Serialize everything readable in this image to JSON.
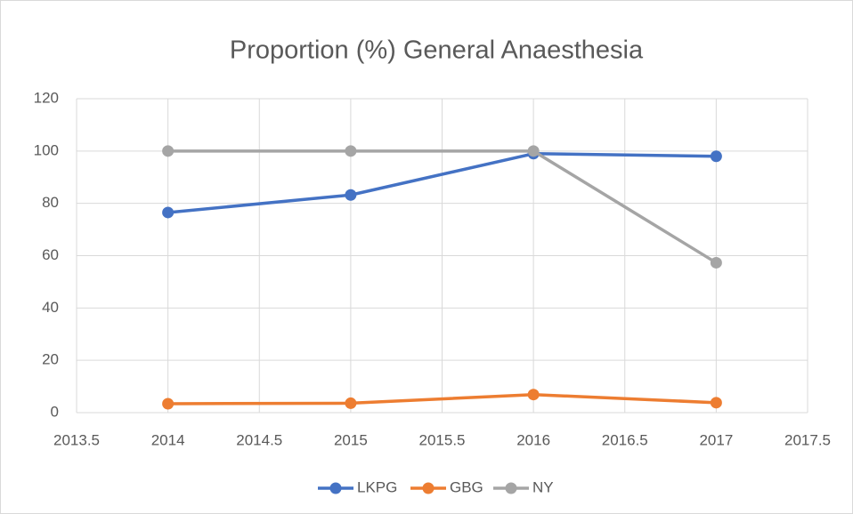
{
  "chart_data": {
    "type": "line",
    "title": "Proportion (%) General Anaesthesia",
    "x": [
      2014,
      2015,
      2016,
      2017
    ],
    "series": [
      {
        "name": "LKPG",
        "color": "#4472c4",
        "values": [
          76.5,
          83.2,
          99,
          98
        ]
      },
      {
        "name": "GBG",
        "color": "#ed7d31",
        "values": [
          3.4,
          3.6,
          6.9,
          3.8
        ]
      },
      {
        "name": "NY",
        "color": "#a5a5a5",
        "values": [
          100,
          100,
          100,
          57.3
        ]
      }
    ],
    "xlim": [
      2013.5,
      2017.5
    ],
    "xticks": [
      2013.5,
      2014,
      2014.5,
      2015,
      2015.5,
      2016,
      2016.5,
      2017,
      2017.5
    ],
    "ylim": [
      0,
      120
    ],
    "yticks": [
      0,
      20,
      40,
      60,
      80,
      100,
      120
    ],
    "grid": true,
    "legend": "bottom"
  }
}
